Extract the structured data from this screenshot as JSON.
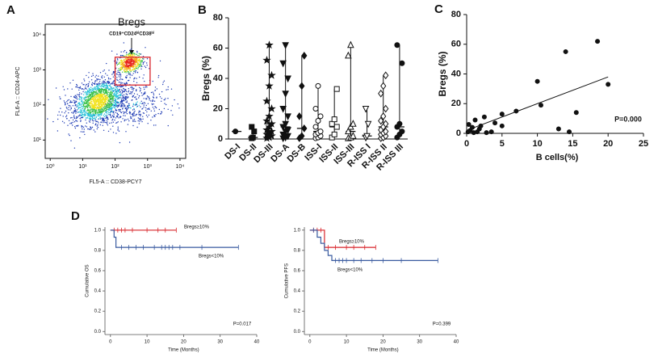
{
  "chart_data": [
    {
      "type": "flow-density",
      "panel_label": "A",
      "xlabel": "FL5-A :: CD38-PCY7",
      "ylabel": "FL6-A :: CD24-APC",
      "log": true,
      "xlim": [
        0.7,
        15000
      ],
      "ylim": [
        3,
        20000
      ],
      "xticks": [
        {
          "value": 1,
          "label": "10⁰"
        },
        {
          "value": 10,
          "label": "10¹"
        },
        {
          "value": 100,
          "label": "10²"
        },
        {
          "value": 1000,
          "label": "10³"
        },
        {
          "value": 10000,
          "label": "10⁴"
        }
      ],
      "yticks": [
        {
          "value": 10,
          "label": "10¹"
        },
        {
          "value": 100,
          "label": "10²"
        },
        {
          "value": 1000,
          "label": "10³"
        },
        {
          "value": 10000,
          "label": "10⁴"
        }
      ],
      "gate": {
        "label": "Bregs",
        "sublabel": "CD19⁺CD24ʰⁱCD38ʰⁱ",
        "x": [
          100,
          1200
        ],
        "y": [
          370,
          2300
        ],
        "color": "#d9242b"
      }
    },
    {
      "type": "dot-plot",
      "panel_label": "B",
      "ylabel": "Bregs (%)",
      "color": "#111111",
      "categories": [
        "DS-I",
        "DS-II",
        "DS-III",
        "DS-A",
        "DS-B",
        "ISS-I",
        "ISS-II",
        "ISS-III",
        "R-ISS I",
        "R-ISS II",
        "R-ISS III"
      ],
      "markers": [
        "circle",
        "square",
        "star",
        "triangle-down",
        "diamond",
        "circle-open",
        "square-open",
        "triangle-open",
        "triangle-down-open",
        "diamond-open",
        "circle"
      ],
      "values": [
        [
          5
        ],
        [
          0.5,
          1,
          5,
          8
        ],
        [
          0.5,
          1,
          2,
          3,
          4,
          5,
          6,
          8,
          10,
          12,
          15,
          20,
          25,
          35,
          42,
          52,
          62
        ],
        [
          0.5,
          1,
          2,
          3,
          5,
          6,
          8,
          10,
          15,
          20,
          30,
          40,
          50,
          62
        ],
        [
          0.5,
          2,
          7,
          15,
          35,
          55
        ],
        [
          0.5,
          1,
          2,
          3,
          4,
          5,
          8,
          12,
          15,
          20,
          35
        ],
        [
          1,
          3,
          8,
          10,
          13,
          33
        ],
        [
          0.5,
          1,
          2,
          5,
          8,
          10,
          55,
          62
        ],
        [
          1,
          2,
          10,
          20
        ],
        [
          0.5,
          1,
          2,
          3,
          4,
          5,
          6,
          8,
          10,
          12,
          15,
          20,
          30,
          35,
          42
        ],
        [
          1,
          3,
          5,
          8,
          10,
          50,
          62
        ]
      ],
      "ylim": [
        0,
        80
      ],
      "yticks": [
        0,
        20,
        40,
        60,
        80
      ]
    },
    {
      "type": "scatter",
      "panel_label": "C",
      "xlabel": "B cells(%)",
      "ylabel": "Bregs (%)",
      "annotation": "P=0.000",
      "color": "#111111",
      "x": [
        0.2,
        0.3,
        0.5,
        0.8,
        1,
        1.2,
        1.5,
        1.8,
        2,
        2.5,
        2.8,
        3.5,
        4,
        5,
        5,
        7,
        10,
        10.5,
        13,
        14,
        14.5,
        15.5,
        18.5,
        20
      ],
      "values": [
        1,
        6,
        2,
        4,
        0.5,
        9,
        1,
        3,
        5,
        11,
        0.5,
        1,
        7,
        13,
        5,
        15,
        35,
        19,
        3,
        55,
        1,
        14,
        62,
        33
      ],
      "trendline": {
        "x": [
          0,
          20
        ],
        "y": [
          2,
          38
        ]
      },
      "xlim": [
        0,
        25
      ],
      "xticks": [
        0,
        5,
        10,
        15,
        20,
        25
      ],
      "ylim": [
        0,
        80
      ],
      "yticks": [
        0,
        20,
        40,
        60,
        80
      ]
    },
    {
      "type": "km",
      "panel_label": "D",
      "xlabel": "Time (Months)",
      "ylabel": "Cumulative OS",
      "annotation": "P=0.017",
      "xlim": [
        -1.5,
        40
      ],
      "xticks": [
        0,
        10,
        20,
        30,
        40
      ],
      "ylim": [
        -0.03,
        1.03
      ],
      "yticks": [
        {
          "value": 0,
          "label": "0.0"
        },
        {
          "value": 0.2,
          "label": "0.2"
        },
        {
          "value": 0.4,
          "label": "0.4"
        },
        {
          "value": 0.6,
          "label": "0.6"
        },
        {
          "value": 0.8,
          "label": "0.8"
        },
        {
          "value": 1,
          "label": "1.0"
        }
      ],
      "series": [
        {
          "name": "Bregs≥10%",
          "color": "#d9262c",
          "x": [
            0,
            18
          ],
          "values": [
            1,
            1
          ],
          "censored": [
            1,
            2,
            3,
            4,
            6,
            10,
            13,
            15,
            18
          ]
        },
        {
          "name": "Bregs<10%",
          "color": "#3a5ba0",
          "x": [
            0,
            1,
            1.5,
            35
          ],
          "values": [
            1,
            0.93,
            0.83,
            0.83
          ],
          "censored": [
            3,
            5,
            7,
            9,
            12,
            14,
            15,
            16,
            17,
            19,
            25,
            35
          ]
        }
      ]
    },
    {
      "type": "km",
      "xlabel": "Time (Months)",
      "ylabel": "Cumulative PFS",
      "annotation": "P=0.399",
      "xlim": [
        -1.5,
        40
      ],
      "xticks": [
        0,
        10,
        20,
        30,
        40
      ],
      "ylim": [
        -0.03,
        1.03
      ],
      "yticks": [
        {
          "value": 0,
          "label": "0.0"
        },
        {
          "value": 0.2,
          "label": "0.2"
        },
        {
          "value": 0.4,
          "label": "0.4"
        },
        {
          "value": 0.6,
          "label": "0.6"
        },
        {
          "value": 0.8,
          "label": "0.8"
        },
        {
          "value": 1,
          "label": "1.0"
        }
      ],
      "series": [
        {
          "name": "Bregs≥10%",
          "color": "#d9262c",
          "x": [
            0,
            4,
            18
          ],
          "values": [
            1,
            0.83,
            0.83
          ],
          "censored": [
            1,
            2,
            3,
            5,
            7,
            10,
            12,
            15,
            18
          ]
        },
        {
          "name": "Bregs<10%",
          "color": "#3a5ba0",
          "x": [
            0,
            2,
            3,
            4,
            5,
            6,
            35
          ],
          "values": [
            1,
            0.93,
            0.87,
            0.8,
            0.75,
            0.7,
            0.7
          ],
          "censored": [
            1,
            7,
            8,
            9,
            10,
            12,
            14,
            17,
            20,
            25,
            35
          ]
        }
      ]
    }
  ]
}
